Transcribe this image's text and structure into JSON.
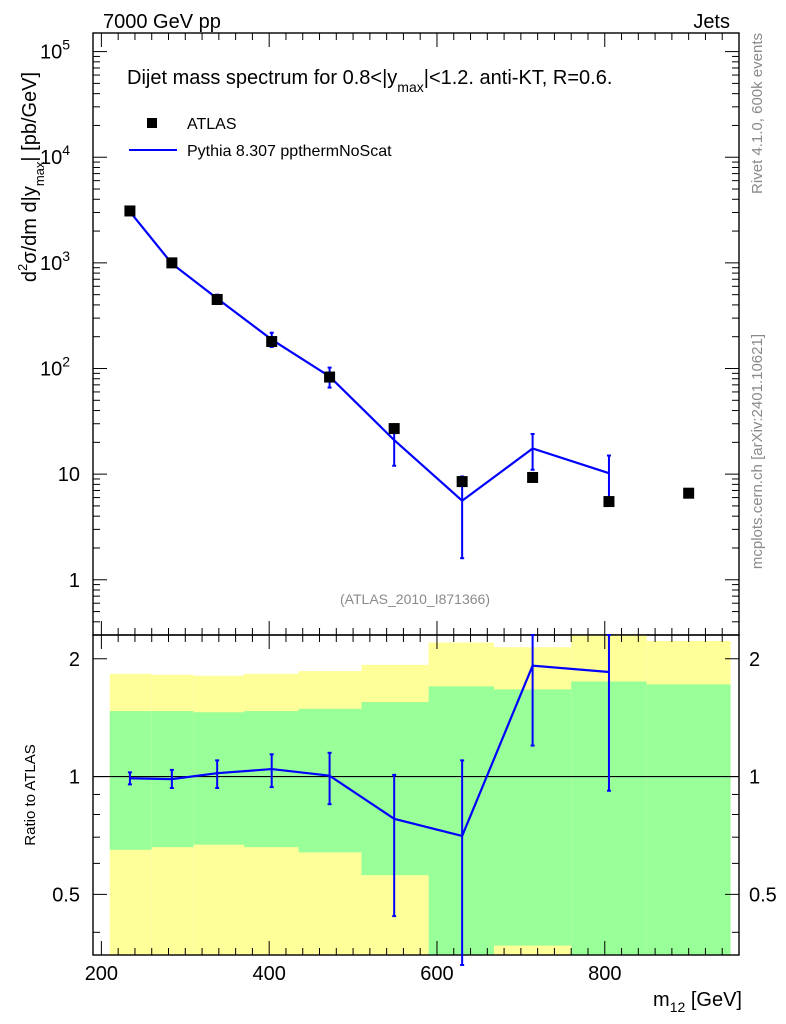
{
  "header": {
    "left": "7000 GeV pp",
    "right": "Jets"
  },
  "side_labels": {
    "rivet": "Rivet 4.1.0,  600k events",
    "mcplots": "mcplots.cern.ch [arXiv:2401.10621]"
  },
  "chart_data": [
    {
      "type": "scatter+line",
      "panel": "main",
      "title_parts": {
        "pre": "Dijet mass spectrum for 0.8<|y",
        "sub": "max",
        "post": "|<1.2.  anti-KT, R=0.6."
      },
      "ylabel_parts": {
        "sup": "2",
        "pre": "d",
        "mid": "σ/dm d|y",
        "sub": "max",
        "post": "| [pb/GeV]"
      },
      "yscale": "log",
      "ylim": [
        0.3,
        150000
      ],
      "xlim": [
        190,
        960
      ],
      "y_ticks": [
        {
          "value": 1,
          "base": "1",
          "exp": ""
        },
        {
          "value": 10,
          "base": "10",
          "exp": ""
        },
        {
          "value": 100,
          "base": "10",
          "exp": "2"
        },
        {
          "value": 1000,
          "base": "10",
          "exp": "3"
        },
        {
          "value": 10000,
          "base": "10",
          "exp": "4"
        },
        {
          "value": 100000,
          "base": "10",
          "exp": "5"
        }
      ],
      "legend": {
        "position": "top-left",
        "data_label": "ATLAS",
        "mc_label": "Pythia 8.307 ppthermNoScat"
      },
      "watermark": "(ATLAS_2010_I871366)",
      "series": [
        {
          "name": "ATLAS",
          "style": "marker",
          "x": [
            234,
            284,
            338,
            403,
            472,
            549,
            630,
            714,
            805,
            900
          ],
          "y": [
            3100,
            1000,
            450,
            180,
            83,
            27,
            8.5,
            9.3,
            5.5,
            6.6
          ]
        },
        {
          "name": "Pythia 8.307 ppthermNoScat",
          "style": "line",
          "color": "#0000ff",
          "x": [
            234,
            284,
            338,
            403,
            472,
            549,
            630,
            714,
            805
          ],
          "y": [
            3050,
            985,
            460,
            188,
            84,
            21,
            5.6,
            17.5,
            10.2
          ],
          "y_err_low": [
            2950,
            940,
            420,
            160,
            66,
            12,
            1.6,
            11,
            5
          ],
          "y_err_high": [
            3150,
            1040,
            500,
            218,
            102,
            29,
            9.5,
            24,
            15
          ]
        }
      ]
    },
    {
      "type": "ratio",
      "panel": "ratio",
      "ylabel": "Ratio to ATLAS",
      "xlabel_parts": {
        "pre": "m",
        "sub": "12",
        "post": " [GeV]"
      },
      "xlim": [
        190,
        960
      ],
      "ylim": [
        0.35,
        2.3
      ],
      "x_ticks": [
        {
          "value": 200,
          "label": "200"
        },
        {
          "value": 400,
          "label": "400"
        },
        {
          "value": 600,
          "label": "600"
        },
        {
          "value": 800,
          "label": "800"
        }
      ],
      "y_ticks": [
        {
          "value": 0.5,
          "label": "0.5"
        },
        {
          "value": 1,
          "label": "1"
        },
        {
          "value": 2,
          "label": "2"
        }
      ],
      "bands": {
        "yellow_color": "#ffff99",
        "green_color": "#99ff99",
        "bins": [
          {
            "x0": 210,
            "x1": 260,
            "y_lo": 0.35,
            "y_hi": 1.83,
            "g_lo": 0.65,
            "g_hi": 1.47
          },
          {
            "x0": 260,
            "x1": 310,
            "y_lo": 0.35,
            "y_hi": 1.82,
            "g_lo": 0.66,
            "g_hi": 1.47
          },
          {
            "x0": 310,
            "x1": 370,
            "y_lo": 0.35,
            "y_hi": 1.81,
            "g_lo": 0.67,
            "g_hi": 1.46
          },
          {
            "x0": 370,
            "x1": 435,
            "y_lo": 0.35,
            "y_hi": 1.83,
            "g_lo": 0.66,
            "g_hi": 1.47
          },
          {
            "x0": 435,
            "x1": 510,
            "y_lo": 0.35,
            "y_hi": 1.86,
            "g_lo": 0.64,
            "g_hi": 1.49
          },
          {
            "x0": 510,
            "x1": 590,
            "y_lo": 0.35,
            "y_hi": 1.93,
            "g_lo": 0.56,
            "g_hi": 1.55
          },
          {
            "x0": 590,
            "x1": 668,
            "y_lo": 0.35,
            "y_hi": 2.2,
            "g_lo": 0.35,
            "g_hi": 1.7
          },
          {
            "x0": 668,
            "x1": 760,
            "y_lo": 0.35,
            "y_hi": 2.14,
            "g_lo": 0.37,
            "g_hi": 1.67
          },
          {
            "x0": 760,
            "x1": 850,
            "y_lo": 0.35,
            "y_hi": 2.3,
            "g_lo": 0.35,
            "g_hi": 1.75
          },
          {
            "x0": 850,
            "x1": 950,
            "y_lo": 0.35,
            "y_hi": 2.22,
            "g_lo": 0.35,
            "g_hi": 1.72
          }
        ]
      },
      "reference_line": 1,
      "series": [
        {
          "name": "Pythia 8.307 ppthermNoScat / ATLAS",
          "color": "#0000ff",
          "x": [
            234,
            284,
            338,
            403,
            472,
            549,
            630,
            714,
            805
          ],
          "y": [
            0.99,
            0.985,
            1.02,
            1.045,
            1.005,
            0.78,
            0.705,
            1.92,
            1.85
          ],
          "y_err_low": [
            0.955,
            0.935,
            0.935,
            0.94,
            0.85,
            0.44,
            0.33,
            1.2,
            0.92
          ],
          "y_err_high": [
            1.025,
            1.04,
            1.1,
            1.14,
            1.15,
            1.01,
            1.1,
            2.3,
            2.3
          ]
        }
      ]
    }
  ]
}
